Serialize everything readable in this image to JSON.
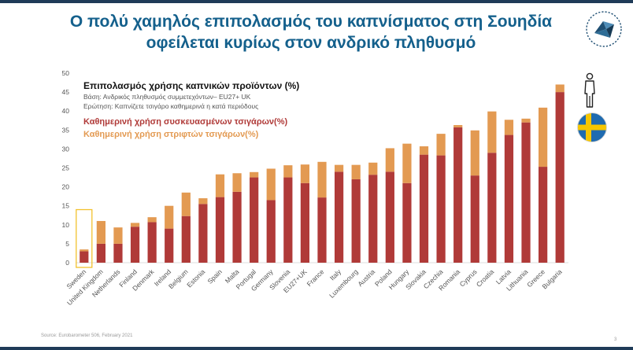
{
  "page": {
    "title_line1": "Ο πολύ χαμηλός επιπολασμός του καπνίσματος στη Σουηδία",
    "title_line2": "οφείλεται κυρίως στον ανδρικό πληθυσμό",
    "source": "Source: Eurobarometer 506, February 2021",
    "page_number": "3",
    "icons": [
      "logo-icon",
      "person-icon",
      "sweden-flag-icon"
    ]
  },
  "chart_data": {
    "type": "bar",
    "stacked": true,
    "title": "Επιπολασμός χρήσης καπνικών προϊόντων (%)",
    "subtitle_lines": [
      "Βάση: Ανδρικός πληθυσμός συμμετεχόντων– EU27+ UK",
      "Ερώτηση: Καπνίζετε τσιγάρο καθημερινά η κατά περιόδους"
    ],
    "categories": [
      "Sweden",
      "United Kingdom",
      "Netherlands",
      "Finland",
      "Denmark",
      "Ireland",
      "Belgium",
      "Estonia",
      "Spain",
      "Malta",
      "Portugal",
      "Germany",
      "Slovenia",
      "EU27+UK",
      "France",
      "Italy",
      "Luxembourg",
      "Austria",
      "Poland",
      "Hungary",
      "Slovakia",
      "Czechia",
      "Romania",
      "Cyprus",
      "Croatia",
      "Latvia",
      "Lithuania",
      "Greece",
      "Bulgaria"
    ],
    "series": [
      {
        "name": "Καθημερινή χρήση συσκευασμένων τσιγάρων(%)",
        "color": "#b03a38",
        "values": [
          3,
          5,
          5,
          9.5,
          10.7,
          9,
          12.3,
          15.5,
          17.3,
          18.7,
          22.5,
          16.5,
          22.5,
          21,
          17.2,
          24,
          22,
          23.2,
          24,
          21,
          28.5,
          28.3,
          35.7,
          23,
          29,
          33.7,
          37,
          25.3,
          45
        ]
      },
      {
        "name": "Καθημερινή χρήση στριφτών τσιγάρων(%)",
        "color": "#e39a52",
        "values": [
          0.5,
          6,
          4.3,
          1,
          1.3,
          6,
          6.2,
          1.5,
          6,
          4.9,
          1.4,
          8.3,
          3.2,
          4.9,
          9.4,
          1.8,
          3.8,
          3.2,
          6.2,
          10.4,
          2.2,
          5.7,
          0.6,
          11.9,
          10.9,
          4,
          1,
          15.6,
          2
        ]
      }
    ],
    "ylim": [
      0,
      50
    ],
    "yticks": [
      0,
      5,
      10,
      15,
      20,
      25,
      30,
      35,
      40,
      45,
      50
    ],
    "highlight_category": "Sweden",
    "highlight_color": "#f2c12e",
    "legend_placement": "top-left",
    "grid": false
  }
}
